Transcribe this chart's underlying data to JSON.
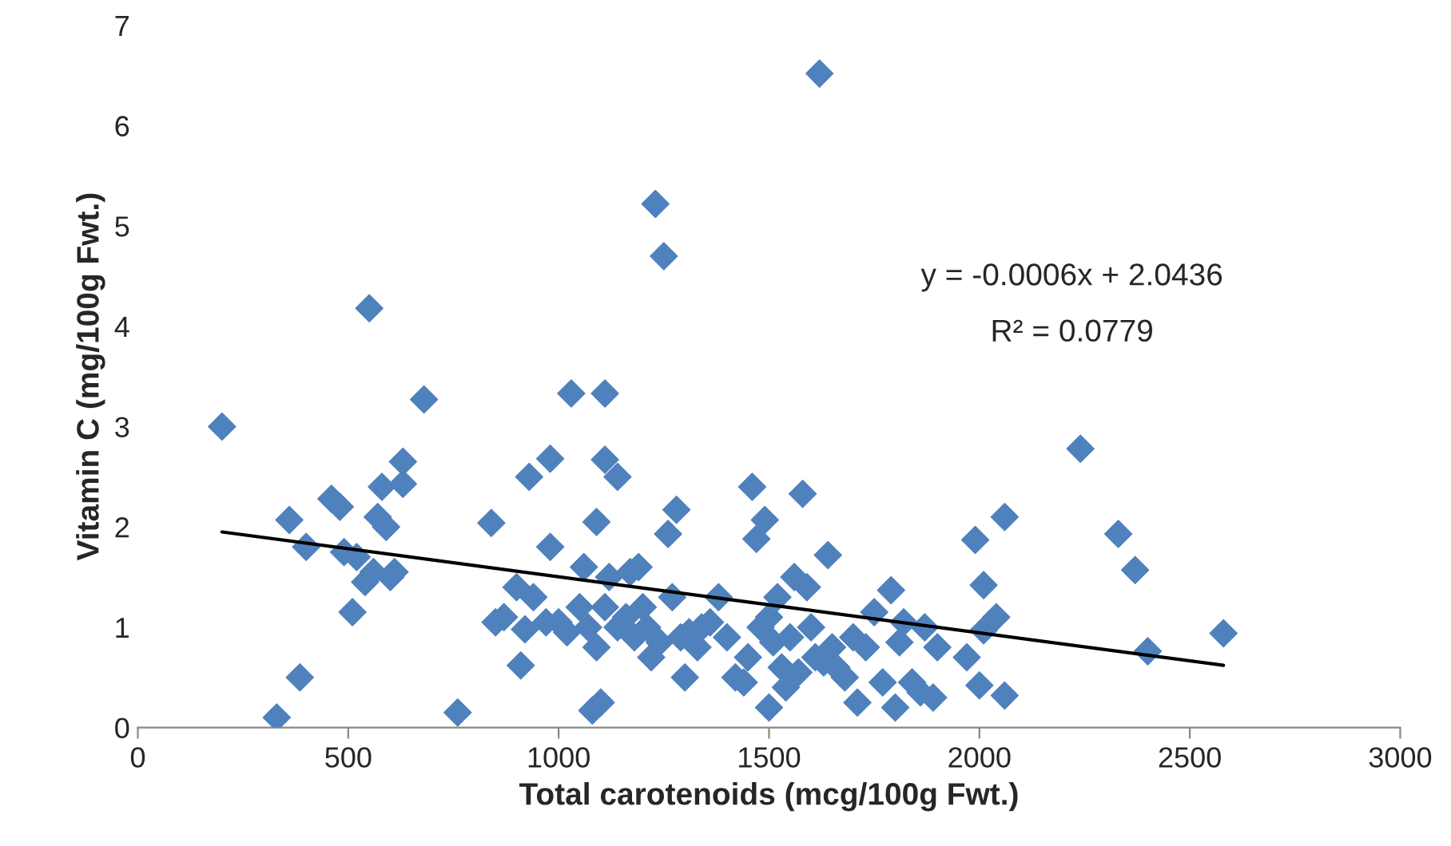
{
  "chart_data": {
    "type": "scatter",
    "xlabel": "Total carotenoids (mcg/100g Fwt.)",
    "ylabel": "Vitamin C (mg/100g Fwt.)",
    "xlim": [
      0,
      3000
    ],
    "xticks": [
      0,
      500,
      1000,
      1500,
      2000,
      2500,
      3000
    ],
    "ylim": [
      0,
      7
    ],
    "yticks": [
      0,
      1,
      2,
      3,
      4,
      5,
      6,
      7
    ],
    "grid": false,
    "marker": "diamond",
    "annotations": [
      "y = -0.0006x + 2.0436",
      "R² = 0.0779"
    ],
    "series": [
      {
        "color": "#4f81bd",
        "x": [
          200,
          330,
          360,
          385,
          400,
          460,
          480,
          490,
          510,
          520,
          540,
          550,
          560,
          570,
          580,
          590,
          600,
          610,
          630,
          630,
          680,
          760,
          840,
          850,
          870,
          900,
          910,
          920,
          930,
          940,
          970,
          980,
          980,
          1000,
          1020,
          1030,
          1050,
          1060,
          1070,
          1080,
          1090,
          1090,
          1100,
          1110,
          1110,
          1110,
          1120,
          1140,
          1140,
          1160,
          1170,
          1180,
          1190,
          1200,
          1210,
          1220,
          1230,
          1240,
          1250,
          1260,
          1270,
          1280,
          1290,
          1300,
          1310,
          1330,
          1340,
          1360,
          1380,
          1400,
          1420,
          1440,
          1450,
          1460,
          1470,
          1480,
          1490,
          1500,
          1500,
          1510,
          1520,
          1530,
          1540,
          1550,
          1560,
          1570,
          1580,
          1590,
          1600,
          1610,
          1620,
          1630,
          1640,
          1650,
          1660,
          1680,
          1700,
          1710,
          1730,
          1750,
          1770,
          1790,
          1800,
          1810,
          1820,
          1840,
          1860,
          1870,
          1890,
          1900,
          1970,
          1990,
          2000,
          2010,
          2010,
          2040,
          2060,
          2060,
          2240,
          2330,
          2370,
          2400,
          2580
        ],
        "values": [
          3.0,
          0.1,
          2.07,
          0.5,
          1.8,
          2.28,
          2.2,
          1.75,
          1.15,
          1.7,
          1.45,
          4.18,
          1.55,
          2.1,
          2.4,
          2.0,
          1.5,
          1.55,
          2.43,
          2.65,
          3.27,
          0.15,
          2.04,
          1.05,
          1.1,
          1.4,
          0.62,
          0.98,
          2.5,
          1.3,
          1.05,
          2.68,
          1.8,
          1.05,
          0.95,
          3.33,
          1.2,
          1.6,
          1.0,
          0.17,
          2.05,
          0.8,
          0.25,
          3.33,
          2.67,
          1.2,
          1.5,
          2.5,
          1.0,
          1.1,
          1.55,
          0.9,
          1.6,
          1.2,
          1.0,
          0.7,
          5.22,
          0.85,
          4.7,
          1.93,
          1.3,
          2.17,
          0.9,
          0.5,
          0.95,
          0.8,
          1.0,
          1.05,
          1.3,
          0.9,
          0.5,
          0.45,
          0.7,
          2.4,
          1.88,
          1.0,
          2.07,
          0.2,
          1.1,
          0.85,
          1.3,
          0.6,
          0.4,
          0.9,
          1.5,
          0.55,
          2.33,
          1.4,
          1.0,
          0.7,
          6.52,
          0.65,
          1.72,
          0.8,
          0.6,
          0.5,
          0.9,
          0.25,
          0.8,
          1.15,
          0.45,
          1.37,
          0.2,
          0.85,
          1.05,
          0.45,
          0.35,
          1.0,
          0.3,
          0.8,
          0.7,
          1.87,
          0.42,
          0.97,
          1.42,
          1.1,
          0.32,
          2.1,
          2.78,
          1.93,
          1.57,
          0.76,
          0.94
        ]
      },
      {
        "type": "line",
        "color": "#000000",
        "x": [
          200,
          2580
        ],
        "values": [
          1.95,
          0.62
        ],
        "marker": "none"
      }
    ]
  }
}
